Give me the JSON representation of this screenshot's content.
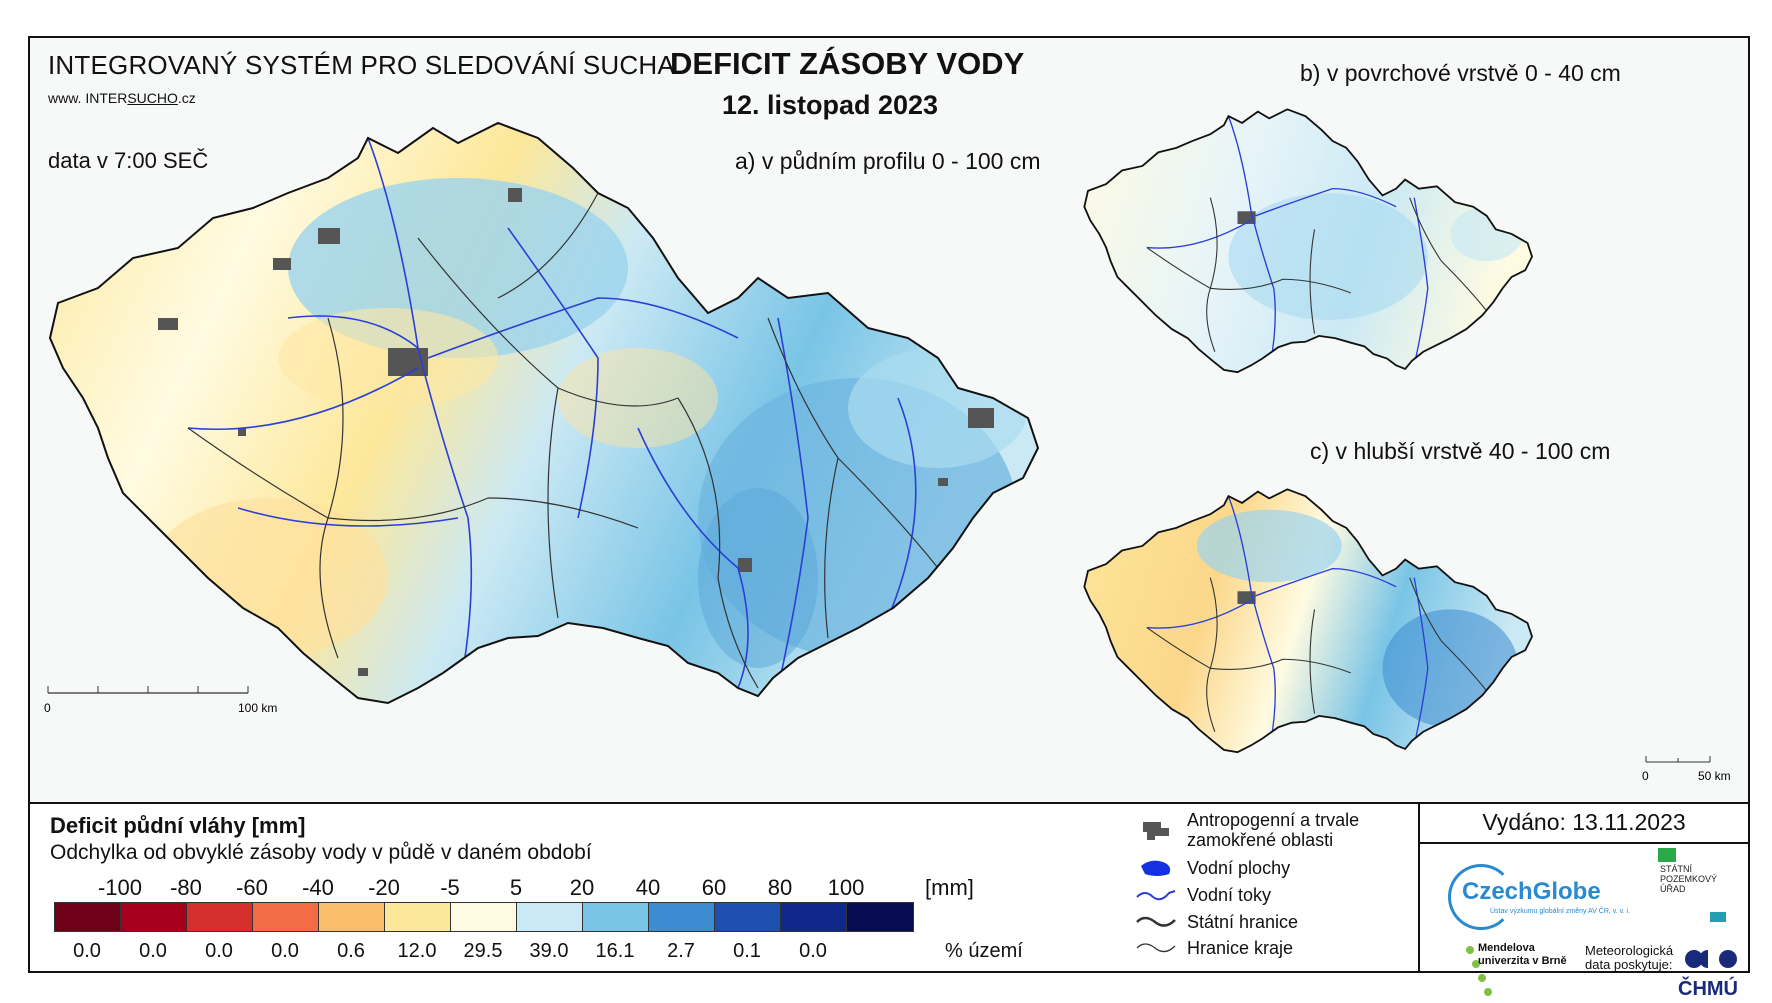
{
  "header": {
    "system_title": "INTEGROVANÝ SYSTÉM PRO SLEDOVÁNÍ SUCHA",
    "url_prefix": "www. INTER",
    "url_highlight": "SUCHO",
    "url_suffix": ".cz",
    "data_time": "data v 7:00 SEČ",
    "main_title": "DEFICIT ZÁSOBY VODY",
    "date": "12. listopad 2023"
  },
  "maps": {
    "a_label": "a) v půdním profilu 0 - 100 cm",
    "b_label": "b) v povrchové vrstvě 0 - 40 cm",
    "c_label": "c) v hlubší vrstvě 40 - 100 cm",
    "main_scale": {
      "start": "0",
      "end": "100 km"
    },
    "small_scale": {
      "start": "0",
      "end": "50 km"
    }
  },
  "legend": {
    "title": "Deficit půdní vláhy  [mm]",
    "subtitle": "Odchylka od obvyklé zásoby vody v půdě v daném období",
    "ticks": [
      "-100",
      "-80",
      "-60",
      "-40",
      "-20",
      "-5",
      "5",
      "20",
      "40",
      "60",
      "80",
      "100"
    ],
    "unit": "[mm]",
    "colors": [
      "#6e0017",
      "#a7001f",
      "#d6302c",
      "#f26c45",
      "#fbbd6a",
      "#fde799",
      "#fffbe2",
      "#cbe9f4",
      "#79c4e6",
      "#3d8bd0",
      "#1d4fb0",
      "#10288a",
      "#070b50"
    ],
    "percent": [
      "0.0",
      "0.0",
      "0.0",
      "0.0",
      "0.6",
      "12.0",
      "29.5",
      "39.0",
      "16.1",
      "2.7",
      "0.1",
      "0.0"
    ],
    "percent_unit": "% území"
  },
  "key": {
    "anthropogenic": "Antropogenní a trvale zamokřené oblasti",
    "water_bodies": "Vodní plochy",
    "rivers": "Vodní toky",
    "state_border": "Státní hranice",
    "region_border": "Hranice kraje"
  },
  "footer": {
    "issued": "Vydáno: 13.11.2023",
    "czechglobe": "CzechGlobe",
    "czechglobe_sub": "Ústav výzkumu globální změny AV ČR, v. v. i.",
    "spu": "STÁTNÍ POZEMKOVÝ ÚŘAD",
    "mendel": "Mendelova univerzita v Brně",
    "meteo": "Meteorologická data poskytuje:",
    "chmu": "ČHMÚ"
  }
}
